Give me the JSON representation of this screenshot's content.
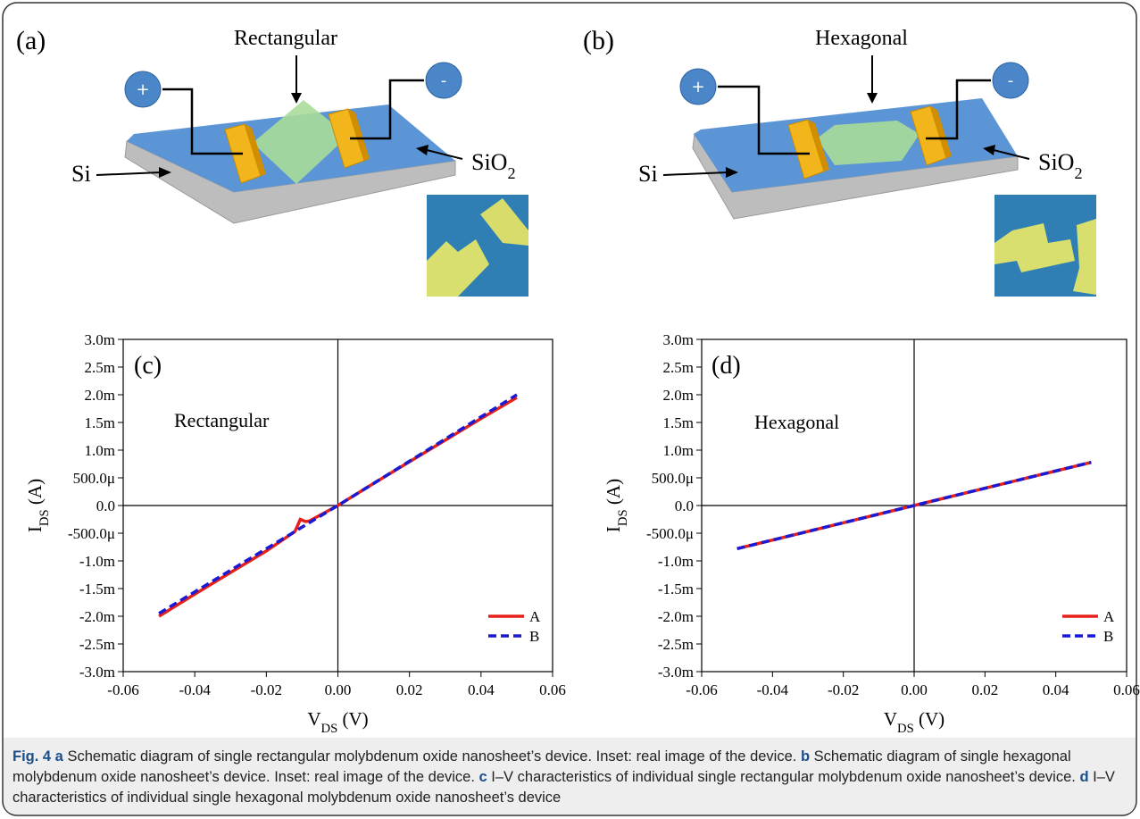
{
  "diagrams": [
    {
      "label": "(a)",
      "shape": "Rectangular",
      "substrate": "Si",
      "oxide": {
        "main": "SiO",
        "sub": "2"
      },
      "plus": "+",
      "minus": "-"
    },
    {
      "label": "(b)",
      "shape": "Hexagonal",
      "substrate": "Si",
      "oxide": {
        "main": "SiO",
        "sub": "2"
      },
      "plus": "+",
      "minus": "-"
    }
  ],
  "chart_data": [
    {
      "type": "line",
      "annotations": [
        "(c)",
        "Rectangular"
      ],
      "xlabel": {
        "main": "V",
        "sub": "DS",
        "unit": " (V)"
      },
      "ylabel": {
        "main": "I",
        "sub": "DS",
        "unit": " (A)"
      },
      "x": [
        -0.05,
        -0.04,
        -0.03,
        -0.02,
        -0.012,
        -0.0105,
        -0.009,
        -0.008,
        0,
        0.01,
        0.02,
        0.03,
        0.04,
        0.05
      ],
      "series": [
        {
          "name": "A",
          "color": "#e8201a",
          "linestyle": "solid",
          "values": [
            -0.002,
            -0.0016,
            -0.00121,
            -0.00082,
            -0.00047,
            -0.00025,
            -0.00029,
            -0.00028,
            0,
            0.0004,
            0.00079,
            0.00118,
            0.00157,
            0.00195
          ]
        },
        {
          "name": "B",
          "color": "#1a1ad2",
          "linestyle": "dashed",
          "values": [
            -0.00195,
            -0.00156,
            -0.00117,
            -0.00078,
            -0.00047,
            -0.00041,
            -0.00035,
            -0.00031,
            0,
            0.0004,
            0.0008,
            0.0012,
            0.0016,
            0.002
          ]
        }
      ],
      "xlim": [
        -0.06,
        0.06
      ],
      "ylim": [
        -0.003,
        0.003
      ],
      "xticks": [
        -0.06,
        -0.04,
        -0.02,
        {
          "value": 0,
          "label": "0.00"
        },
        0.02,
        0.04,
        0.06
      ],
      "yticks": [
        {
          "value": 0.003,
          "label": "3.0m"
        },
        {
          "value": 0.0025,
          "label": "2.5m"
        },
        {
          "value": 0.002,
          "label": "2.0m"
        },
        {
          "value": 0.0015,
          "label": "1.5m"
        },
        {
          "value": 0.001,
          "label": "1.0m"
        },
        {
          "value": 0.0005,
          "label": "500.0μ"
        },
        {
          "value": 0,
          "label": "0.0"
        },
        {
          "value": -0.0005,
          "label": "-500.0μ"
        },
        {
          "value": -0.001,
          "label": "-1.0m"
        },
        {
          "value": -0.0015,
          "label": "-1.5m"
        },
        {
          "value": -0.002,
          "label": "-2.0m"
        },
        {
          "value": -0.0025,
          "label": "-2.5m"
        },
        {
          "value": -0.003,
          "label": "-3.0m"
        }
      ],
      "legend": "lower right"
    },
    {
      "type": "line",
      "annotations": [
        "(d)",
        "Hexagonal"
      ],
      "xlabel": {
        "main": "V",
        "sub": "DS",
        "unit": " (V)"
      },
      "ylabel": {
        "main": "I",
        "sub": "DS",
        "unit": " (A)"
      },
      "x": [
        -0.05,
        -0.025,
        0,
        0.025,
        0.05
      ],
      "series": [
        {
          "name": "A",
          "color": "#e8201a",
          "linestyle": "solid",
          "values": [
            -0.00078,
            -0.00039,
            0,
            0.00039,
            0.00078
          ]
        },
        {
          "name": "B",
          "color": "#1a1ad2",
          "linestyle": "dashed",
          "values": [
            -0.00078,
            -0.00039,
            0,
            0.00039,
            0.00078
          ]
        }
      ],
      "xlim": [
        -0.06,
        0.06
      ],
      "ylim": [
        -0.003,
        0.003
      ],
      "xticks": [
        -0.06,
        -0.04,
        -0.02,
        {
          "value": 0,
          "label": "0.00"
        },
        0.02,
        0.04,
        0.06
      ],
      "yticks": [
        {
          "value": 0.003,
          "label": "3.0m"
        },
        {
          "value": 0.0025,
          "label": "2.5m"
        },
        {
          "value": 0.002,
          "label": "2.0m"
        },
        {
          "value": 0.0015,
          "label": "1.5m"
        },
        {
          "value": 0.001,
          "label": "1.0m"
        },
        {
          "value": 0.0005,
          "label": "500.0μ"
        },
        {
          "value": 0,
          "label": "0.0"
        },
        {
          "value": -0.0005,
          "label": "-500.0μ"
        },
        {
          "value": -0.001,
          "label": "-1.0m"
        },
        {
          "value": -0.0015,
          "label": "-1.5m"
        },
        {
          "value": -0.002,
          "label": "-2.0m"
        },
        {
          "value": -0.0025,
          "label": "-2.5m"
        },
        {
          "value": -0.003,
          "label": "-3.0m"
        }
      ],
      "legend": "lower right"
    }
  ],
  "caption": [
    {
      "text": "Fig. 4",
      "bold": true
    },
    {
      "text": " a",
      "bold": true
    },
    {
      "text": " Schematic diagram of single rectangular molybdenum oxide nanosheet’s device. Inset: real image of the device. ",
      "bold": false
    },
    {
      "text": "b",
      "bold": true
    },
    {
      "text": " Schematic diagram of single hexagonal molybdenum oxide nanosheet’s device. Inset: real image of the device. ",
      "bold": false
    },
    {
      "text": "c",
      "bold": true
    },
    {
      "text": " I–V characteristics of individual single rectangular molybdenum oxide nanosheet’s device. ",
      "bold": false
    },
    {
      "text": "d",
      "bold": true
    },
    {
      "text": " I–V characteristics of individual single hexagonal molybdenum oxide nanosheet’s device",
      "bold": false
    }
  ]
}
